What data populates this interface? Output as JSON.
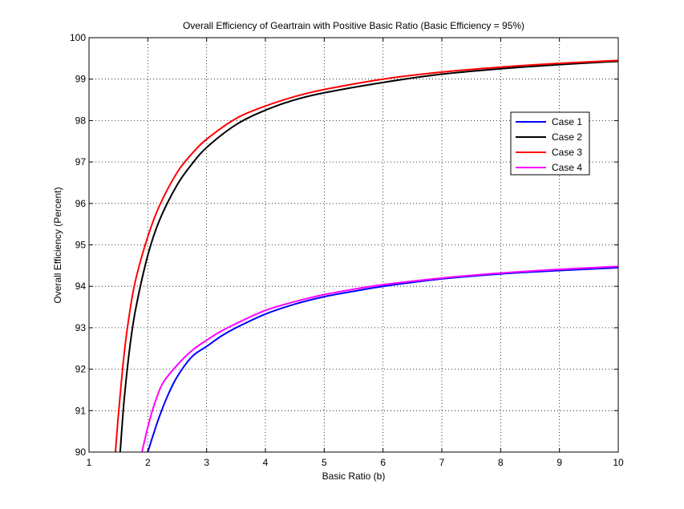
{
  "chart_data": {
    "type": "line",
    "title": "Overall Efficiency of Geartrain with Positive Basic Ratio (Basic Efficiency = 95%)",
    "xlabel": "Basic Ratio (b)",
    "ylabel": "Overall Efficiency (Percent)",
    "xlim": [
      1,
      10
    ],
    "ylim": [
      90,
      100
    ],
    "xticks": [
      "1",
      "2",
      "3",
      "4",
      "5",
      "6",
      "7",
      "8",
      "9",
      "10"
    ],
    "yticks": [
      "90",
      "91",
      "92",
      "93",
      "94",
      "95",
      "96",
      "97",
      "98",
      "99",
      "100"
    ],
    "grid": true,
    "legend_position": "right",
    "series": [
      {
        "name": "Case 1",
        "color": "#0000ff",
        "x": [
          2.0,
          2.1,
          2.2,
          2.35,
          2.5,
          2.75,
          3.0,
          3.25,
          3.5,
          4.0,
          4.5,
          5.0,
          5.5,
          6.0,
          7.0,
          8.0,
          9.0,
          10.0
        ],
        "y": [
          90.0,
          90.45,
          90.87,
          91.4,
          91.82,
          92.3,
          92.55,
          92.8,
          93.0,
          93.33,
          93.57,
          93.75,
          93.88,
          94.0,
          94.18,
          94.3,
          94.38,
          94.45
        ]
      },
      {
        "name": "Case 2",
        "color": "#000000",
        "x": [
          1.53,
          1.6,
          1.7,
          1.8,
          2.0,
          2.2,
          2.5,
          2.75,
          3.0,
          3.5,
          4.0,
          4.5,
          5.0,
          6.0,
          7.0,
          8.0,
          9.0,
          10.0
        ],
        "y": [
          90.0,
          91.3,
          92.6,
          93.5,
          94.75,
          95.6,
          96.45,
          96.95,
          97.35,
          97.9,
          98.25,
          98.5,
          98.67,
          98.92,
          99.12,
          99.25,
          99.35,
          99.43
        ]
      },
      {
        "name": "Case 3",
        "color": "#ff0000",
        "x": [
          1.45,
          1.5,
          1.6,
          1.7,
          1.8,
          2.0,
          2.2,
          2.5,
          2.75,
          3.0,
          3.5,
          4.0,
          4.5,
          5.0,
          6.0,
          7.0,
          8.0,
          9.0,
          10.0
        ],
        "y": [
          90.0,
          90.9,
          92.4,
          93.45,
          94.2,
          95.2,
          95.95,
          96.75,
          97.2,
          97.55,
          98.05,
          98.35,
          98.58,
          98.75,
          99.0,
          99.17,
          99.29,
          99.38,
          99.45
        ]
      },
      {
        "name": "Case 4",
        "color": "#ff00ff",
        "x": [
          1.9,
          2.0,
          2.1,
          2.25,
          2.5,
          2.75,
          3.0,
          3.25,
          3.5,
          4.0,
          4.5,
          5.0,
          5.5,
          6.0,
          7.0,
          8.0,
          9.0,
          10.0
        ],
        "y": [
          90.0,
          90.6,
          91.1,
          91.65,
          92.1,
          92.45,
          92.7,
          92.92,
          93.1,
          93.42,
          93.63,
          93.8,
          93.93,
          94.04,
          94.2,
          94.32,
          94.41,
          94.48
        ]
      }
    ]
  }
}
